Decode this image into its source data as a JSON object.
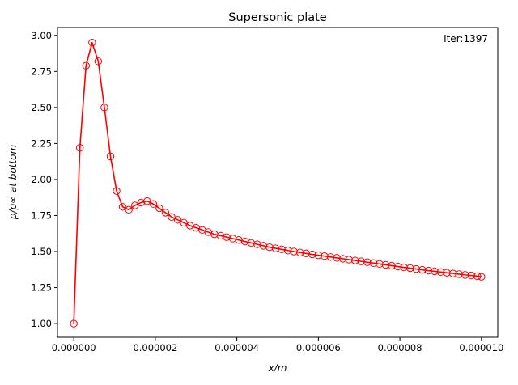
{
  "chart_data": {
    "type": "line",
    "title": "Supersonic plate",
    "annotation": "Iter:1397",
    "xlabel": "x/m",
    "ylabel": "p/p∞ at bottom",
    "xlim": [
      -4e-07,
      1.04e-05
    ],
    "ylim": [
      0.905,
      3.055
    ],
    "xticks": [
      0,
      2e-06,
      4e-06,
      6e-06,
      8e-06,
      1e-05
    ],
    "xtick_labels": [
      "0.000000",
      "0.000002",
      "0.000004",
      "0.000006",
      "0.000008",
      "0.000010"
    ],
    "yticks": [
      1.0,
      1.25,
      1.5,
      1.75,
      2.0,
      2.25,
      2.5,
      2.75,
      3.0
    ],
    "ytick_labels": [
      "1.00",
      "1.25",
      "1.50",
      "1.75",
      "2.00",
      "2.25",
      "2.50",
      "2.75",
      "3.00"
    ],
    "grid": false,
    "series": [
      {
        "color": "#ff0000",
        "marker": "open-circle",
        "x": [
          0,
          1.5e-07,
          3e-07,
          4.5e-07,
          6e-07,
          7.5e-07,
          9e-07,
          1.05e-06,
          1.2e-06,
          1.35e-06,
          1.5e-06,
          1.65e-06,
          1.8e-06,
          1.95e-06,
          2.1e-06,
          2.25e-06,
          2.4e-06,
          2.55e-06,
          2.7e-06,
          2.85e-06,
          3e-06,
          3.15e-06,
          3.3e-06,
          3.45e-06,
          3.6e-06,
          3.75e-06,
          3.9e-06,
          4.05e-06,
          4.2e-06,
          4.35e-06,
          4.5e-06,
          4.65e-06,
          4.8e-06,
          4.95e-06,
          5.1e-06,
          5.25e-06,
          5.4e-06,
          5.55e-06,
          5.7e-06,
          5.85e-06,
          6e-06,
          6.15e-06,
          6.3e-06,
          6.45e-06,
          6.6e-06,
          6.75e-06,
          6.9e-06,
          7.05e-06,
          7.2e-06,
          7.35e-06,
          7.5e-06,
          7.65e-06,
          7.8e-06,
          7.95e-06,
          8.1e-06,
          8.25e-06,
          8.4e-06,
          8.55e-06,
          8.7e-06,
          8.85e-06,
          9e-06,
          9.15e-06,
          9.3e-06,
          9.45e-06,
          9.6e-06,
          9.75e-06,
          9.9e-06,
          1e-05
        ],
        "y": [
          1.0,
          2.22,
          2.79,
          2.95,
          2.82,
          2.5,
          2.16,
          1.92,
          1.81,
          1.79,
          1.82,
          1.84,
          1.85,
          1.83,
          1.8,
          1.77,
          1.74,
          1.72,
          1.7,
          1.68,
          1.665,
          1.65,
          1.635,
          1.62,
          1.61,
          1.6,
          1.59,
          1.58,
          1.57,
          1.56,
          1.55,
          1.54,
          1.53,
          1.522,
          1.515,
          1.507,
          1.5,
          1.493,
          1.487,
          1.48,
          1.474,
          1.468,
          1.462,
          1.456,
          1.45,
          1.444,
          1.438,
          1.432,
          1.426,
          1.42,
          1.414,
          1.408,
          1.402,
          1.396,
          1.39,
          1.385,
          1.379,
          1.373,
          1.368,
          1.363,
          1.358,
          1.353,
          1.348,
          1.343,
          1.338,
          1.334,
          1.329,
          1.325
        ]
      }
    ]
  }
}
